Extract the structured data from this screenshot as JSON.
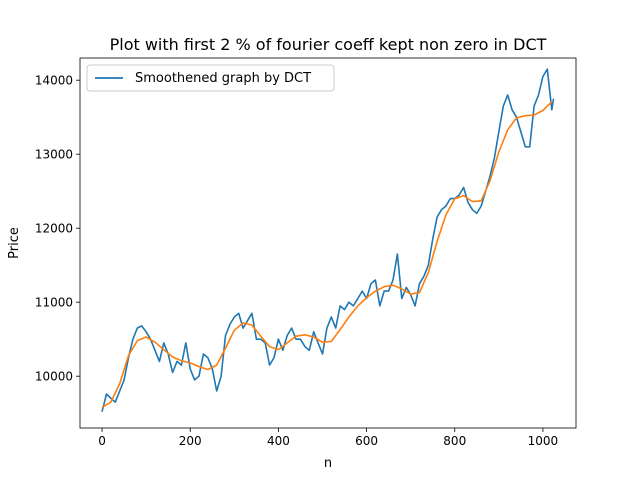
{
  "chart_data": {
    "type": "line",
    "title": "Plot with first 2 % of fourier coeff kept non zero in DCT",
    "xlabel": "n",
    "ylabel": "Price",
    "xlim": [
      -50,
      1075
    ],
    "ylim": [
      9300,
      14300
    ],
    "xticks": [
      0,
      200,
      400,
      600,
      800,
      1000
    ],
    "yticks": [
      10000,
      11000,
      12000,
      13000,
      14000
    ],
    "grid": false,
    "legend": {
      "placement": "top-left",
      "entries": [
        "Smoothened graph by DCT"
      ]
    },
    "series": [
      {
        "name": "",
        "color": "#1f77b4",
        "x": [
          0,
          10,
          20,
          30,
          40,
          50,
          60,
          70,
          80,
          90,
          100,
          110,
          120,
          130,
          140,
          150,
          160,
          170,
          180,
          190,
          200,
          210,
          220,
          230,
          240,
          250,
          260,
          270,
          280,
          290,
          300,
          310,
          320,
          330,
          340,
          350,
          360,
          370,
          380,
          390,
          400,
          410,
          420,
          430,
          440,
          450,
          460,
          470,
          480,
          490,
          500,
          510,
          520,
          530,
          540,
          550,
          560,
          570,
          580,
          590,
          600,
          610,
          620,
          630,
          640,
          650,
          660,
          670,
          680,
          690,
          700,
          710,
          720,
          730,
          740,
          750,
          760,
          770,
          780,
          790,
          800,
          810,
          820,
          830,
          840,
          850,
          860,
          870,
          880,
          890,
          900,
          910,
          920,
          930,
          940,
          950,
          960,
          970,
          980,
          990,
          1000,
          1010,
          1020,
          1024
        ],
        "values": [
          9520,
          9760,
          9700,
          9650,
          9800,
          9950,
          10250,
          10500,
          10650,
          10680,
          10600,
          10500,
          10350,
          10200,
          10450,
          10300,
          10050,
          10200,
          10150,
          10450,
          10100,
          9950,
          10000,
          10300,
          10250,
          10100,
          9800,
          10000,
          10550,
          10700,
          10800,
          10850,
          10650,
          10750,
          10850,
          10500,
          10500,
          10450,
          10150,
          10250,
          10500,
          10350,
          10550,
          10650,
          10500,
          10500,
          10400,
          10350,
          10600,
          10450,
          10300,
          10650,
          10800,
          10650,
          10950,
          10900,
          11000,
          10950,
          11050,
          11150,
          11050,
          11250,
          11300,
          10950,
          11150,
          11150,
          11300,
          11650,
          11050,
          11200,
          11100,
          10950,
          11250,
          11350,
          11500,
          11850,
          12150,
          12250,
          12300,
          12400,
          12400,
          12450,
          12550,
          12350,
          12250,
          12200,
          12300,
          12500,
          12700,
          12950,
          13300,
          13650,
          13800,
          13600,
          13500,
          13300,
          13100,
          13100,
          13650,
          13800,
          14050,
          14150,
          13600,
          13750
        ]
      },
      {
        "name": "Smoothened graph by DCT",
        "color": "#ff7f0e",
        "x": [
          0,
          20,
          40,
          60,
          80,
          100,
          120,
          140,
          160,
          180,
          200,
          220,
          240,
          260,
          280,
          300,
          320,
          340,
          360,
          380,
          400,
          420,
          440,
          460,
          480,
          500,
          520,
          540,
          560,
          580,
          600,
          620,
          640,
          660,
          680,
          700,
          720,
          740,
          760,
          780,
          800,
          820,
          840,
          860,
          880,
          900,
          920,
          940,
          960,
          980,
          1000,
          1020
        ],
        "values": [
          9580,
          9650,
          9900,
          10280,
          10480,
          10530,
          10460,
          10360,
          10260,
          10210,
          10180,
          10130,
          10090,
          10150,
          10380,
          10620,
          10720,
          10690,
          10540,
          10400,
          10360,
          10450,
          10540,
          10560,
          10530,
          10460,
          10470,
          10630,
          10800,
          10950,
          11060,
          11150,
          11210,
          11230,
          11180,
          11110,
          11130,
          11400,
          11820,
          12180,
          12400,
          12440,
          12360,
          12370,
          12640,
          13030,
          13330,
          13490,
          13520,
          13530,
          13590,
          13710
        ]
      }
    ]
  }
}
